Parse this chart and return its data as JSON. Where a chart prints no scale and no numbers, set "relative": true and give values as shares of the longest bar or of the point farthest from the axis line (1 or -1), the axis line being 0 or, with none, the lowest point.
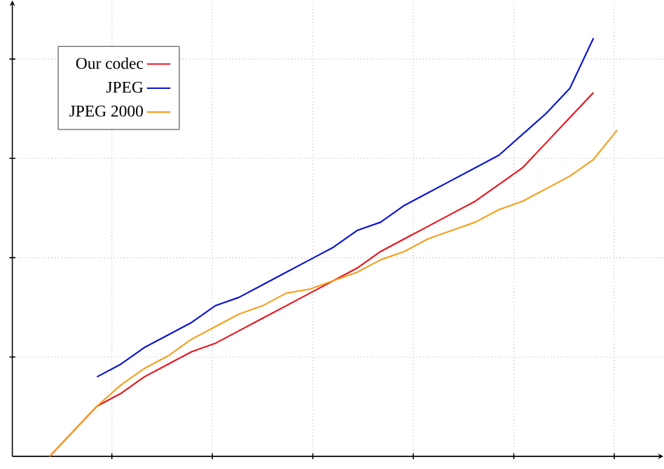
{
  "chart_data": {
    "type": "line",
    "relative": true,
    "categories": [
      null,
      null,
      null,
      null,
      null,
      null,
      null,
      null,
      null,
      null,
      null,
      null,
      null,
      null,
      null,
      null,
      null,
      null,
      null,
      null,
      null,
      null,
      null,
      null,
      null
    ],
    "series": [
      {
        "name": "Our codec",
        "color": "#e8141c",
        "values": [
          0,
          0.06,
          0.12,
          0.15,
          0.19,
          0.22,
          0.25,
          0.27,
          0.3,
          0.33,
          0.36,
          0.39,
          0.42,
          0.45,
          0.49,
          0.52,
          0.55,
          0.58,
          0.61,
          0.65,
          0.69,
          0.75,
          0.81,
          0.87,
          null
        ]
      },
      {
        "name": "JPEG",
        "color": "#0a14d2",
        "values": [
          null,
          null,
          0.19,
          0.22,
          0.26,
          0.29,
          0.32,
          0.36,
          0.38,
          0.41,
          0.44,
          0.47,
          0.5,
          0.54,
          0.56,
          0.6,
          0.63,
          0.66,
          0.69,
          0.72,
          0.77,
          0.82,
          0.88,
          1,
          null
        ]
      },
      {
        "name": "JPEG 2000",
        "color": "#f5a01e",
        "values": [
          0,
          0.06,
          0.12,
          0.17,
          0.21,
          0.24,
          0.28,
          0.31,
          0.34,
          0.36,
          0.39,
          0.4,
          0.42,
          0.44,
          0.47,
          0.49,
          0.52,
          0.54,
          0.56,
          0.59,
          0.61,
          0.64,
          0.67,
          0.71,
          0.78
        ]
      }
    ],
    "grid": true,
    "legend": "top left",
    "tick_labels": false,
    "marker": "none",
    "line_style": "solid"
  }
}
